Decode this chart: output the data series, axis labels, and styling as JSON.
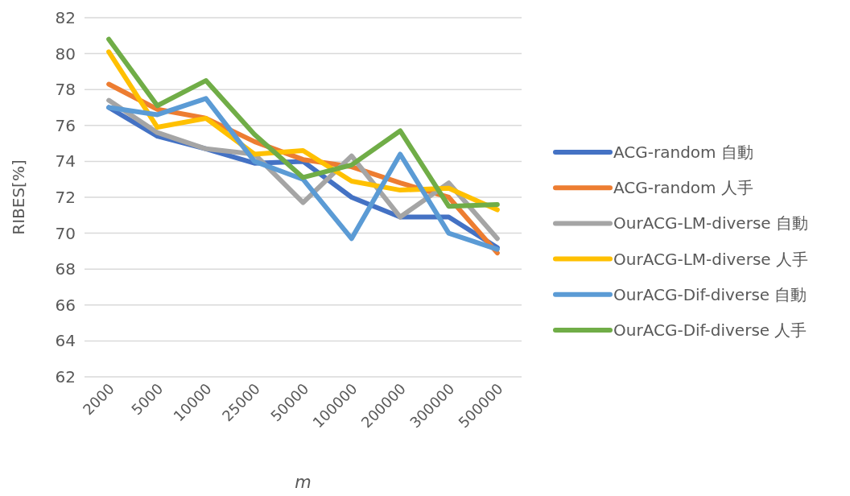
{
  "chart_data": {
    "type": "line",
    "xlabel": "m",
    "ylabel": "RIBES[%]",
    "categories": [
      "2000",
      "5000",
      "10000",
      "25000",
      "50000",
      "100000",
      "200000",
      "300000",
      "500000"
    ],
    "ylim": [
      62,
      82
    ],
    "yticks": [
      62,
      64,
      66,
      68,
      70,
      72,
      74,
      76,
      78,
      80,
      82
    ],
    "grid": "y",
    "legend": "right",
    "marker": "none",
    "line_style": "solid",
    "series": [
      {
        "name": "ACG-random 自動",
        "color": "#4472c4",
        "values": [
          77.0,
          75.4,
          74.7,
          73.9,
          74.0,
          72.0,
          70.9,
          70.9,
          69.2
        ]
      },
      {
        "name": "ACG-random 人手",
        "color": "#ed7d31",
        "values": [
          78.3,
          76.9,
          76.4,
          75.1,
          74.1,
          73.7,
          72.8,
          72.0,
          68.9
        ]
      },
      {
        "name": "OurACG-LM-diverse 自動",
        "color": "#a5a5a5",
        "values": [
          77.4,
          75.6,
          74.7,
          74.4,
          71.7,
          74.3,
          70.9,
          72.8,
          69.7
        ]
      },
      {
        "name": "OurACG-LM-diverse 人手",
        "color": "#ffc000",
        "values": [
          80.1,
          75.9,
          76.4,
          74.4,
          74.6,
          72.9,
          72.4,
          72.5,
          71.3
        ]
      },
      {
        "name": "OurACG-Dif-diverse 自動",
        "color": "#5b9bd5",
        "values": [
          77.0,
          76.6,
          77.5,
          74.0,
          73.0,
          69.7,
          74.4,
          70.0,
          69.1
        ]
      },
      {
        "name": "OurACG-Dif-diverse 人手",
        "color": "#70ad47",
        "values": [
          80.8,
          77.1,
          78.5,
          75.5,
          73.1,
          73.8,
          75.7,
          71.5,
          71.6
        ]
      }
    ]
  }
}
